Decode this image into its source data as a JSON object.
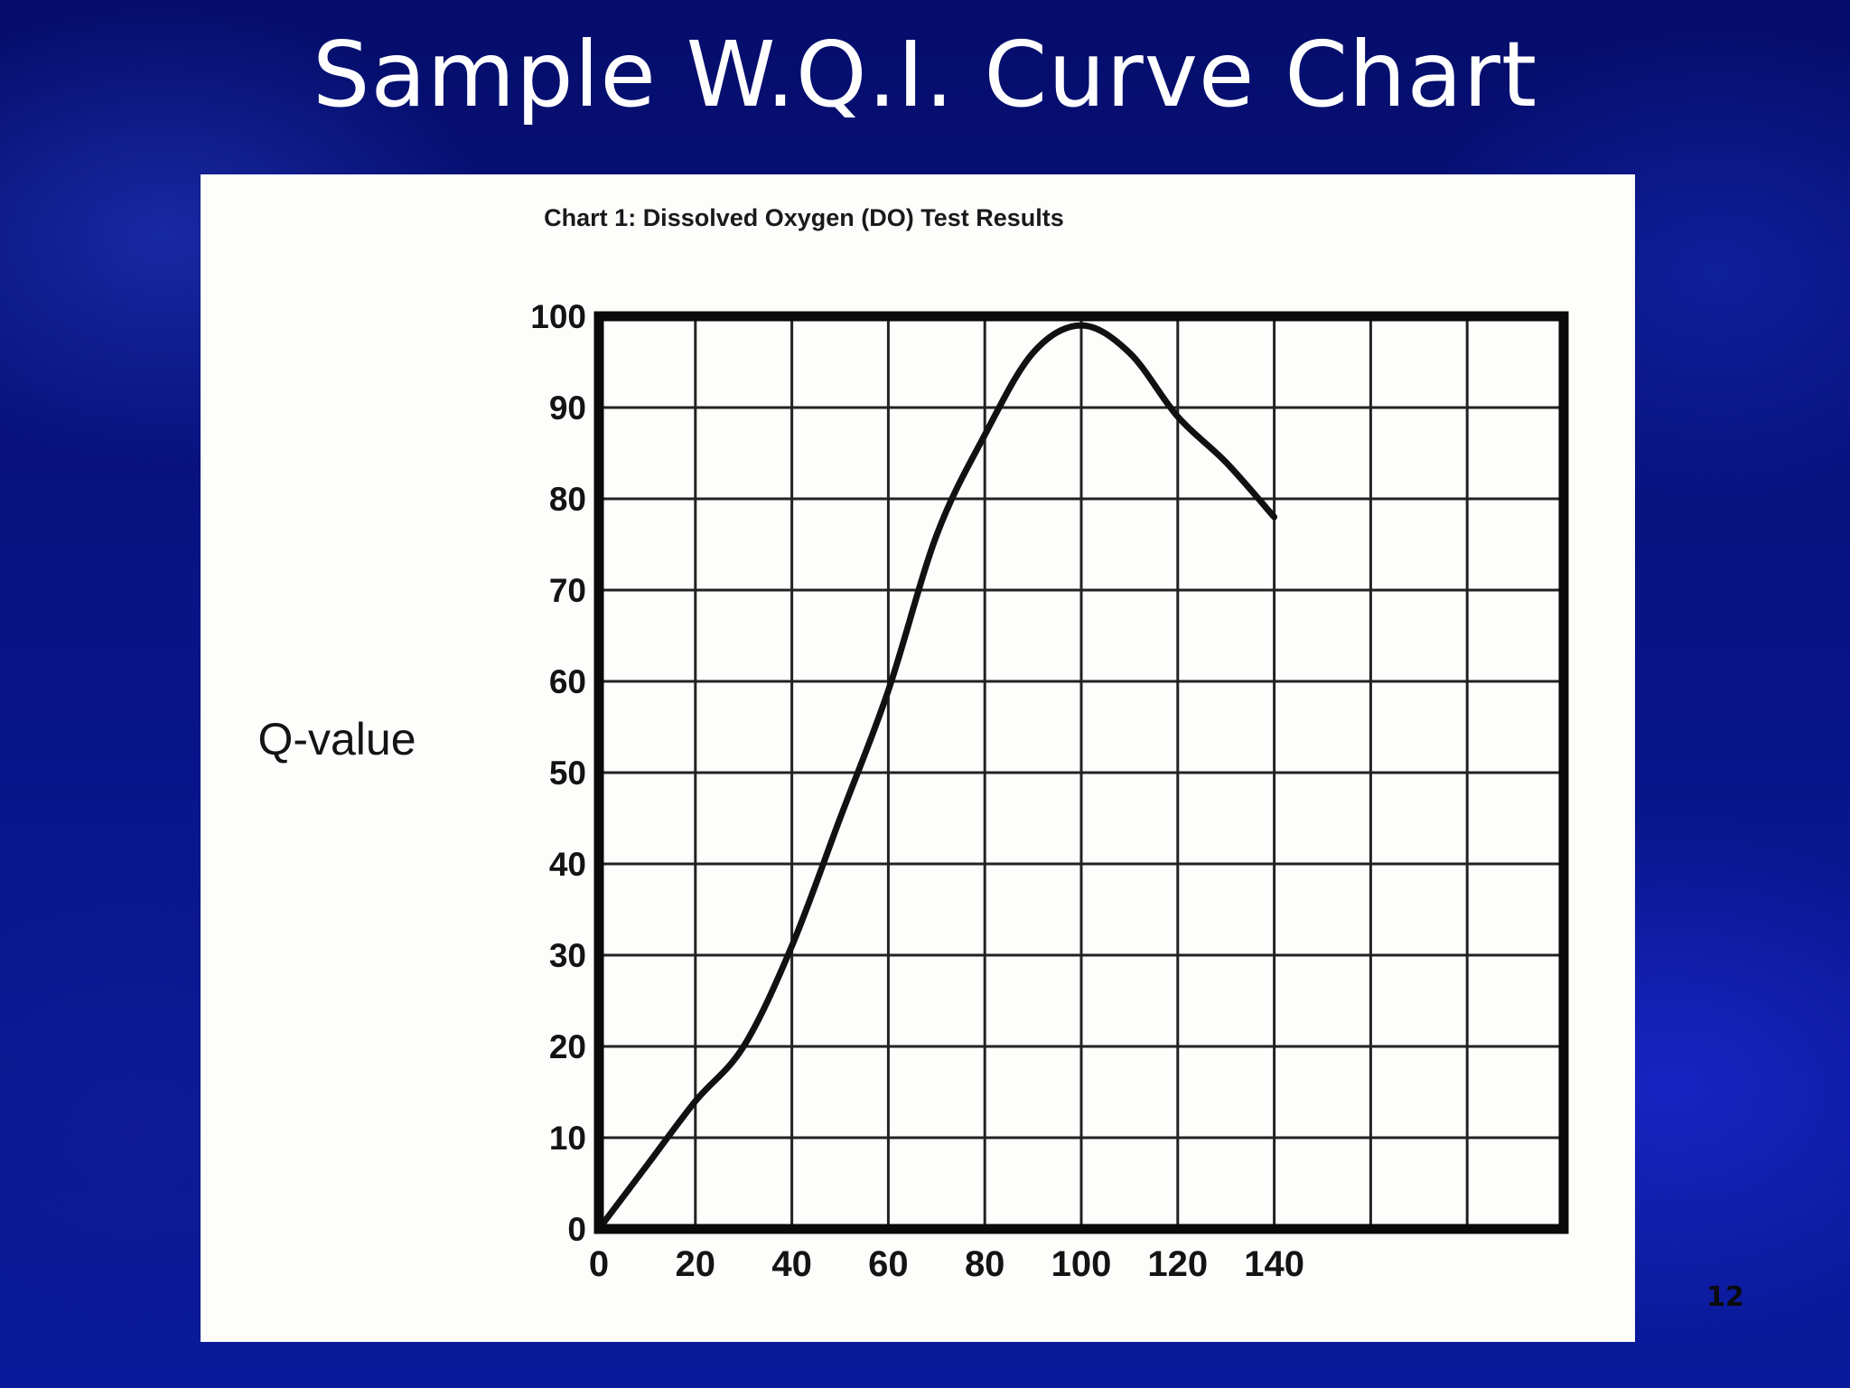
{
  "slide": {
    "title": "Sample W.Q.I. Curve Chart",
    "page_number": "12"
  },
  "chart_data": {
    "type": "line",
    "title": "Chart 1: Dissolved Oxygen (DO) Test Results",
    "xlabel": "",
    "ylabel": "Q-value",
    "xlim": [
      0,
      200
    ],
    "ylim": [
      0,
      100
    ],
    "x_ticks": [
      0,
      20,
      40,
      60,
      80,
      100,
      120,
      140
    ],
    "y_ticks": [
      0,
      10,
      20,
      30,
      40,
      50,
      60,
      70,
      80,
      90,
      100
    ],
    "grid": true,
    "series": [
      {
        "x": [
          0,
          10,
          20,
          30,
          40,
          50,
          60,
          70,
          80,
          90,
          100,
          110,
          120,
          130,
          140
        ],
        "y": [
          0,
          7,
          14,
          20,
          31,
          45,
          59,
          76,
          87,
          96,
          99,
          96,
          89,
          84,
          78
        ]
      }
    ],
    "colors": {
      "line": "#111111",
      "frame": "#0a0a0a",
      "grid": "#222222",
      "panel": "#fdfdfb"
    }
  }
}
